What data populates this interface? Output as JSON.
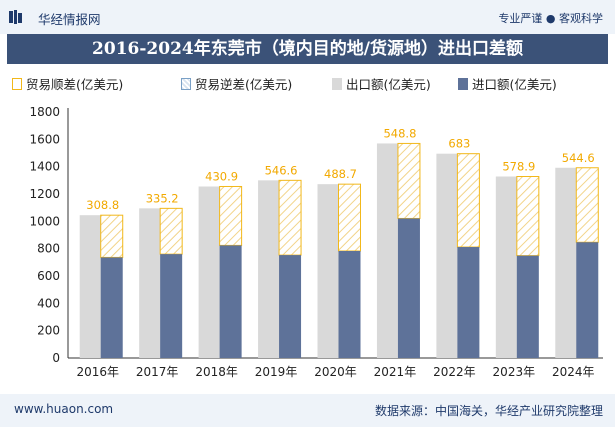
{
  "header": {
    "brand": "华经情报网",
    "slogan": "专业严谨 ● 客观科学"
  },
  "footer": {
    "website": "www.huaon.com",
    "source": "数据来源：中国海关，华经产业研究院整理"
  },
  "colors": {
    "export": "#d9d9d9",
    "import": "#5e7299",
    "surplus_border": "#f2b81a",
    "label": "#f2a900",
    "title_bg": "#3b5278"
  },
  "chart_data": {
    "type": "bar",
    "title": "2016-2024年东莞市（境内目的地/货源地）进出口差额",
    "categories": [
      "2016年",
      "2017年",
      "2018年",
      "2019年",
      "2020年",
      "2021年",
      "2022年",
      "2023年",
      "2024年"
    ],
    "series": [
      {
        "name": "贸易顺差(亿美元)",
        "values": [
          308.8,
          335.2,
          430.9,
          546.6,
          488.7,
          548.8,
          683,
          578.9,
          544.6
        ]
      },
      {
        "name": "贸易逆差(亿美元)",
        "values": [
          0,
          0,
          0,
          0,
          0,
          0,
          0,
          0,
          0
        ]
      },
      {
        "name": "出口额(亿美元)",
        "values": [
          1045,
          1095,
          1255,
          1300,
          1272,
          1570,
          1495,
          1328,
          1392
        ]
      },
      {
        "name": "进口额(亿美元)",
        "values": [
          736,
          760,
          824,
          753,
          783,
          1021,
          812,
          749,
          847
        ]
      }
    ],
    "surplus_labels": [
      "308.8",
      "335.2",
      "430.9",
      "546.6",
      "488.7",
      "548.8",
      "683",
      "578.9",
      "544.6"
    ],
    "yticks": [
      "0",
      "200",
      "400",
      "600",
      "800",
      "1000",
      "1200",
      "1400",
      "1600",
      "1800"
    ],
    "ylim": [
      0,
      1800
    ],
    "legend_position": "top"
  }
}
